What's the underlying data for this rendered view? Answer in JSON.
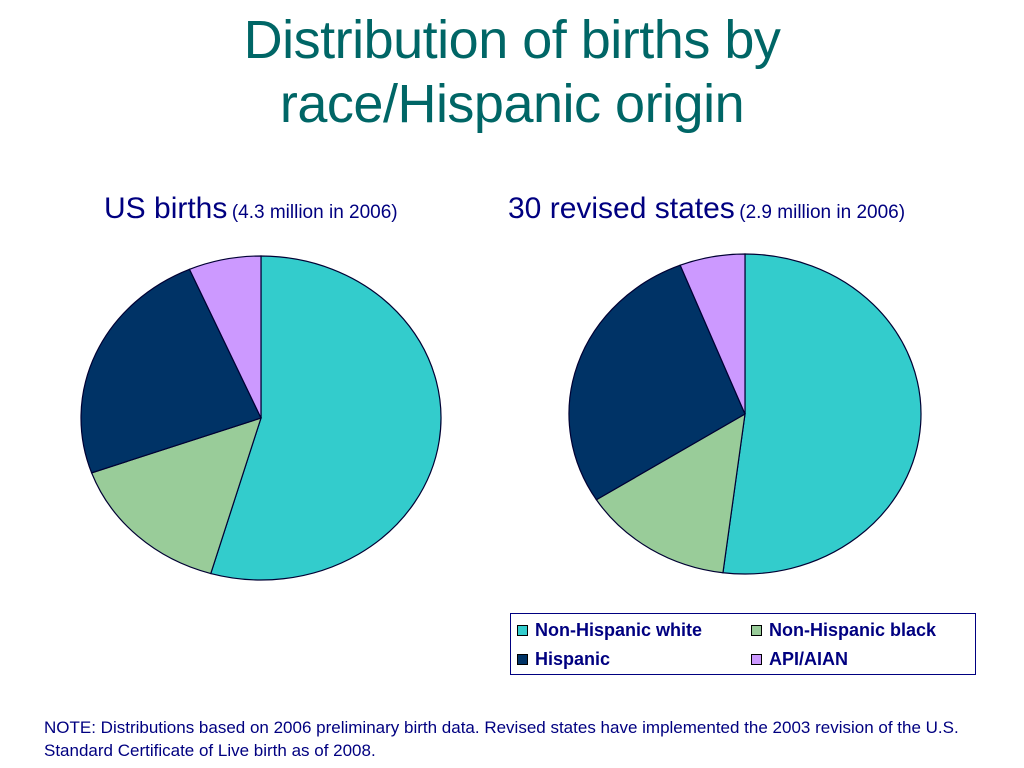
{
  "title_line1": "Distribution of births by",
  "title_line2": "race/Hispanic origin",
  "chart_data": [
    {
      "type": "pie",
      "title": "US births",
      "subtitle": "(4.3 million in 2006)",
      "labels": [
        "Non-Hispanic white",
        "Non-Hispanic black",
        "Hispanic",
        "API/AIAN"
      ],
      "values": [
        54.5,
        15.0,
        24.0,
        6.5
      ]
    },
    {
      "type": "pie",
      "title": "30 revised states",
      "subtitle": "(2.9 million in 2006)",
      "labels": [
        "Non-Hispanic white",
        "Non-Hispanic black",
        "Hispanic",
        "API/AIAN"
      ],
      "values": [
        52.0,
        14.0,
        28.0,
        6.0
      ]
    }
  ],
  "legend": [
    {
      "label": "Non-Hispanic white",
      "color": "#33CCCC"
    },
    {
      "label": "Non-Hispanic black",
      "color": "#99CC99"
    },
    {
      "label": "Hispanic",
      "color": "#003366"
    },
    {
      "label": "API/AIAN",
      "color": "#CC99FF"
    }
  ],
  "note": "NOTE: Distributions based on 2006 preliminary birth data. Revised states have implemented the 2003 revision of the U.S. Standard Certificate of Live birth as of 2008."
}
